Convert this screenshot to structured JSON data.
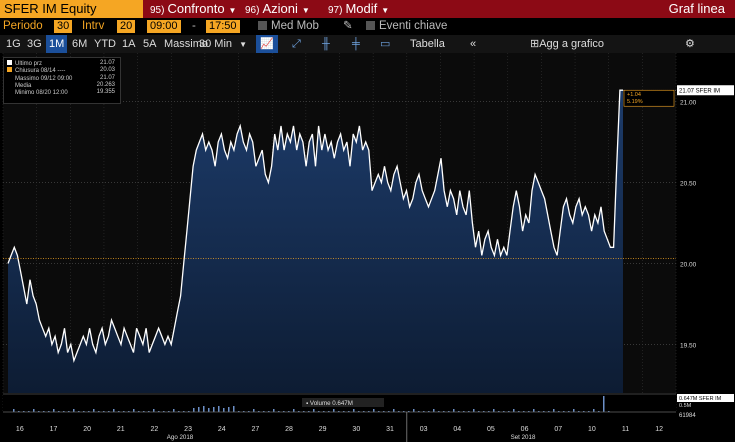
{
  "header": {
    "ticker": "SFER IM Equity",
    "menus": [
      {
        "num": "95)",
        "label": "Confronto"
      },
      {
        "num": "96)",
        "label": "Azioni"
      },
      {
        "num": "97)",
        "label": "Modif"
      }
    ],
    "title": "Graf linea"
  },
  "settings": {
    "period_label": "Periodo",
    "period_value": "30",
    "interval_label": "Intrv",
    "interval_value": "20",
    "time_start": "09:00",
    "time_sep": "-",
    "time_end": "17:50",
    "med_mob": "Med Mob",
    "eventi": "Eventi chiave"
  },
  "toolbar": {
    "ranges": [
      "1G",
      "3G",
      "1M",
      "6M",
      "YTD",
      "1A",
      "5A",
      "Massimo"
    ],
    "active_range": "1M",
    "interval_select": "30 Min",
    "tabella": "Tabella",
    "collapse": "«",
    "add_chart": "Agg a grafico",
    "gear": "⚙"
  },
  "legend": [
    {
      "label": "Ultimo prz",
      "value": "21.07",
      "color": "#ffffff"
    },
    {
      "label": "Chiusura 08/14 ----",
      "value": "20.03",
      "color": "#f5a623"
    },
    {
      "label": "Massimo 09/12 09:00",
      "value": "21.07",
      "color": "#888888"
    },
    {
      "label": "Media",
      "value": "20.263",
      "color": "#888888"
    },
    {
      "label": "Minimo 08/20 12:00",
      "value": "19.355",
      "color": "#888888"
    }
  ],
  "chart_data": {
    "type": "area",
    "ylim": [
      19.2,
      21.3
    ],
    "y_ticks": [
      "21.00",
      "20.50",
      "20.00",
      "19.50"
    ],
    "y_tick_values": [
      21.0,
      20.5,
      20.0,
      19.5
    ],
    "x_ticks": [
      "16",
      "17",
      "20",
      "21",
      "22",
      "23",
      "24",
      "27",
      "28",
      "29",
      "30",
      "31",
      "03",
      "04",
      "05",
      "06",
      "07",
      "10",
      "11",
      "12"
    ],
    "x_month_labels": [
      "Ago 2018",
      "Set 2018"
    ],
    "last_price_label": "21.07 SFER IM",
    "change_label": "+1.04",
    "change_pct_label": "5.19%",
    "reference_close": 20.03,
    "volume_label": "Volume 0.647M",
    "volume_right_label": "0.647M SFER IM",
    "volume_right_value2": "0.5M",
    "volume_right_value3": "61984",
    "colors": {
      "line": "#ffffff",
      "area": "#1a3560",
      "reference": "#f5a623",
      "grid": "#555555"
    },
    "series": [
      {
        "values": [
          20.0,
          20.05,
          20.1,
          20.05,
          19.95,
          19.85,
          19.75,
          19.9,
          19.8,
          19.75,
          19.65,
          19.6,
          19.55,
          19.6,
          19.5,
          19.55,
          19.45,
          19.5,
          19.6,
          19.45,
          19.5,
          19.4,
          19.45,
          19.5,
          19.55,
          19.5,
          19.6,
          19.5,
          19.45,
          19.55,
          19.6,
          19.5,
          19.55,
          19.65,
          19.6,
          19.55,
          19.5,
          19.6,
          19.55,
          19.5,
          19.45,
          19.6,
          19.55,
          19.5,
          19.6,
          19.45,
          19.5,
          19.55,
          19.6,
          19.55,
          19.5,
          19.55,
          19.5,
          19.6,
          19.7,
          19.8,
          20.0,
          20.2,
          20.4,
          20.6,
          20.7,
          20.75,
          20.8,
          20.7,
          20.75,
          20.7,
          20.6,
          20.75,
          20.8,
          20.7,
          20.65,
          20.75,
          20.7,
          20.8,
          20.85,
          20.75,
          20.7,
          20.8,
          20.75,
          20.6,
          20.65,
          20.7,
          20.55,
          20.5,
          20.6,
          20.8,
          20.7,
          20.85,
          20.7,
          20.8,
          20.75,
          20.85,
          20.7,
          20.8,
          20.75,
          20.6,
          20.75,
          20.8,
          20.6,
          20.85,
          20.7,
          20.8,
          20.7,
          20.75,
          20.65,
          20.75,
          20.8,
          20.7,
          20.75,
          20.6,
          20.8,
          20.75,
          20.85,
          20.7,
          20.75,
          20.7,
          20.45,
          20.5,
          20.55,
          20.5,
          20.6,
          20.5,
          20.45,
          20.55,
          20.6,
          20.5,
          20.4,
          20.45,
          20.35,
          20.4,
          20.5,
          20.55,
          20.45,
          20.4,
          20.35,
          20.4,
          20.45,
          20.55,
          20.65,
          20.45,
          20.35,
          20.45,
          20.4,
          20.3,
          20.45,
          20.35,
          20.3,
          20.45,
          20.25,
          20.1,
          20.2,
          20.05,
          20.15,
          20.2,
          20.1,
          20.05,
          20.15,
          20.05,
          20.1,
          20.05,
          20.2,
          20.35,
          20.45,
          20.35,
          20.2,
          20.3,
          20.25,
          20.45,
          20.55,
          20.5,
          20.45,
          20.4,
          20.3,
          20.2,
          20.1,
          20.05,
          20.2,
          20.35,
          20.4,
          20.3,
          20.25,
          20.35,
          20.4,
          20.3,
          20.35,
          20.3,
          20.2,
          20.3,
          20.25,
          20.35,
          20.2,
          20.15,
          20.1,
          20.1,
          20.6,
          21.07,
          21.07
        ]
      }
    ]
  }
}
